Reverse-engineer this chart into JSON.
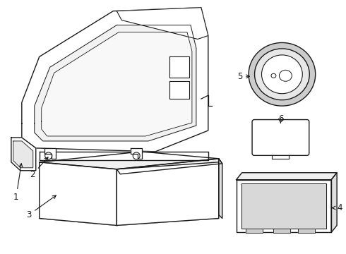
{
  "bg_color": "#ffffff",
  "line_color": "#1a1a1a",
  "line_width": 1.0,
  "label_fontsize": 8.5,
  "figsize": [
    4.9,
    3.6
  ],
  "dpi": 100
}
